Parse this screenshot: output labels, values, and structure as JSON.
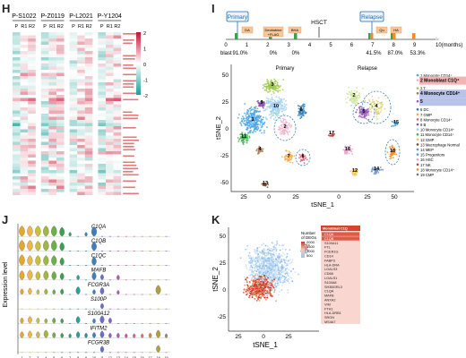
{
  "panels": {
    "H": {
      "label": "H",
      "patients": [
        "P-S1022",
        "P-Z0119",
        "P-L2021",
        "P-Y1204"
      ],
      "columns": [
        "P",
        "R1",
        "R2",
        "P",
        "R1",
        "R2",
        "P",
        "R1",
        "R2",
        "P",
        "R1",
        "R2"
      ],
      "colorbar_ticks": [
        "2",
        "1",
        "0",
        "-1",
        "-2"
      ],
      "colors": {
        "high": "#c8102e",
        "mid": "#ffffff",
        "low": "#1a9e96"
      }
    },
    "I": {
      "label": "I",
      "timeline": {
        "events": [
          "Primary",
          "HSCT",
          "Relapse"
        ],
        "treatments": [
          "DA",
          "Decitabine\n+FLAG",
          "BHA",
          "Qu",
          "HA"
        ],
        "time_ticks": [
          "0",
          "1",
          "2",
          "3",
          "4",
          "5",
          "6",
          "7",
          "8",
          "9",
          "10(months)"
        ],
        "blast_label": "blast",
        "blast_values": [
          "91.0%",
          "0%",
          "0%",
          "41.5%",
          "87.0%",
          "53.3%"
        ]
      },
      "tsne": {
        "xlabel": "tSNE_1",
        "ylabel": "tSNE_2",
        "primary_title": "Primary",
        "relapse_title": "Relapse",
        "primary_xticks": [
          "25",
          "0",
          "25"
        ],
        "relapse_xticks": [
          "0",
          "25",
          "50"
        ],
        "yticks": [
          "50",
          "25",
          "0",
          "-25",
          "-50"
        ]
      },
      "legend": [
        {
          "num": "1",
          "name": "Monocyte CD14⁺",
          "highlight": ""
        },
        {
          "num": "2",
          "name": "Monoblast C1Q⁺",
          "highlight": "#f2b4b4"
        },
        {
          "num": "3",
          "name": "T",
          "highlight": ""
        },
        {
          "num": "4",
          "name": "Monocyte CD14⁺",
          "highlight": "#b9c2e8"
        },
        {
          "num": "5",
          "name": "",
          "highlight": "#b9c2e8"
        },
        {
          "num": "6",
          "name": "DC",
          "highlight": ""
        },
        {
          "num": "7",
          "name": "GMP",
          "highlight": ""
        },
        {
          "num": "8",
          "name": "Monocyte CD14⁺",
          "highlight": ""
        },
        {
          "num": "9",
          "name": "B",
          "highlight": ""
        },
        {
          "num": "10",
          "name": "Monocyte CD14⁺",
          "highlight": ""
        },
        {
          "num": "11",
          "name": "Monocyte CD14⁺",
          "highlight": ""
        },
        {
          "num": "12",
          "name": "GMP",
          "highlight": ""
        },
        {
          "num": "13",
          "name": "Macrophage Normal",
          "highlight": ""
        },
        {
          "num": "14",
          "name": "MEP",
          "highlight": ""
        },
        {
          "num": "15",
          "name": "Progenitors",
          "highlight": ""
        },
        {
          "num": "16",
          "name": "HSC",
          "highlight": ""
        },
        {
          "num": "17",
          "name": "NK",
          "highlight": ""
        },
        {
          "num": "18",
          "name": "Monocyte CD14⁺",
          "highlight": ""
        },
        {
          "num": "19",
          "name": "CMP",
          "highlight": ""
        }
      ]
    },
    "J": {
      "label": "J",
      "ylabel": "Expression level",
      "genes": [
        "C1QA",
        "C1QB",
        "C1QC",
        "MAFB",
        "FCGR3A",
        "S100P",
        "S100A12",
        "IFITM2",
        "FCGR3B"
      ],
      "clusters": [
        "1",
        "2",
        "3",
        "4",
        "5",
        "6",
        "7",
        "8",
        "9",
        "10",
        "11",
        "12",
        "13",
        "14",
        "15",
        "16",
        "17",
        "18",
        "19"
      ]
    },
    "K": {
      "label": "K",
      "xlabel": "tSNE_1",
      "ylabel": "tSNE_2",
      "xticks": [
        "25",
        "0",
        "25"
      ],
      "yticks": [
        "50",
        "25",
        "0",
        "-25"
      ],
      "legend_title": "Number\nof DEGs",
      "legend_values": [
        "2000",
        "1500",
        "1000",
        "500"
      ],
      "box_title": "Monoblast C1Q",
      "genes": [
        "C1QA",
        "C1QB",
        "S100A11",
        "FTL",
        "FCER1G",
        "CD14",
        "FABP3",
        "HLA-DRA",
        "LGALS3",
        "CD68",
        "LGALS1",
        "S100A8",
        "SH3BGRL3",
        "C1QA",
        "MAFB",
        "ANXA2",
        "VIM",
        "FTH1",
        "HLA-DRB1",
        "SRGN",
        "MS4A7"
      ]
    }
  }
}
